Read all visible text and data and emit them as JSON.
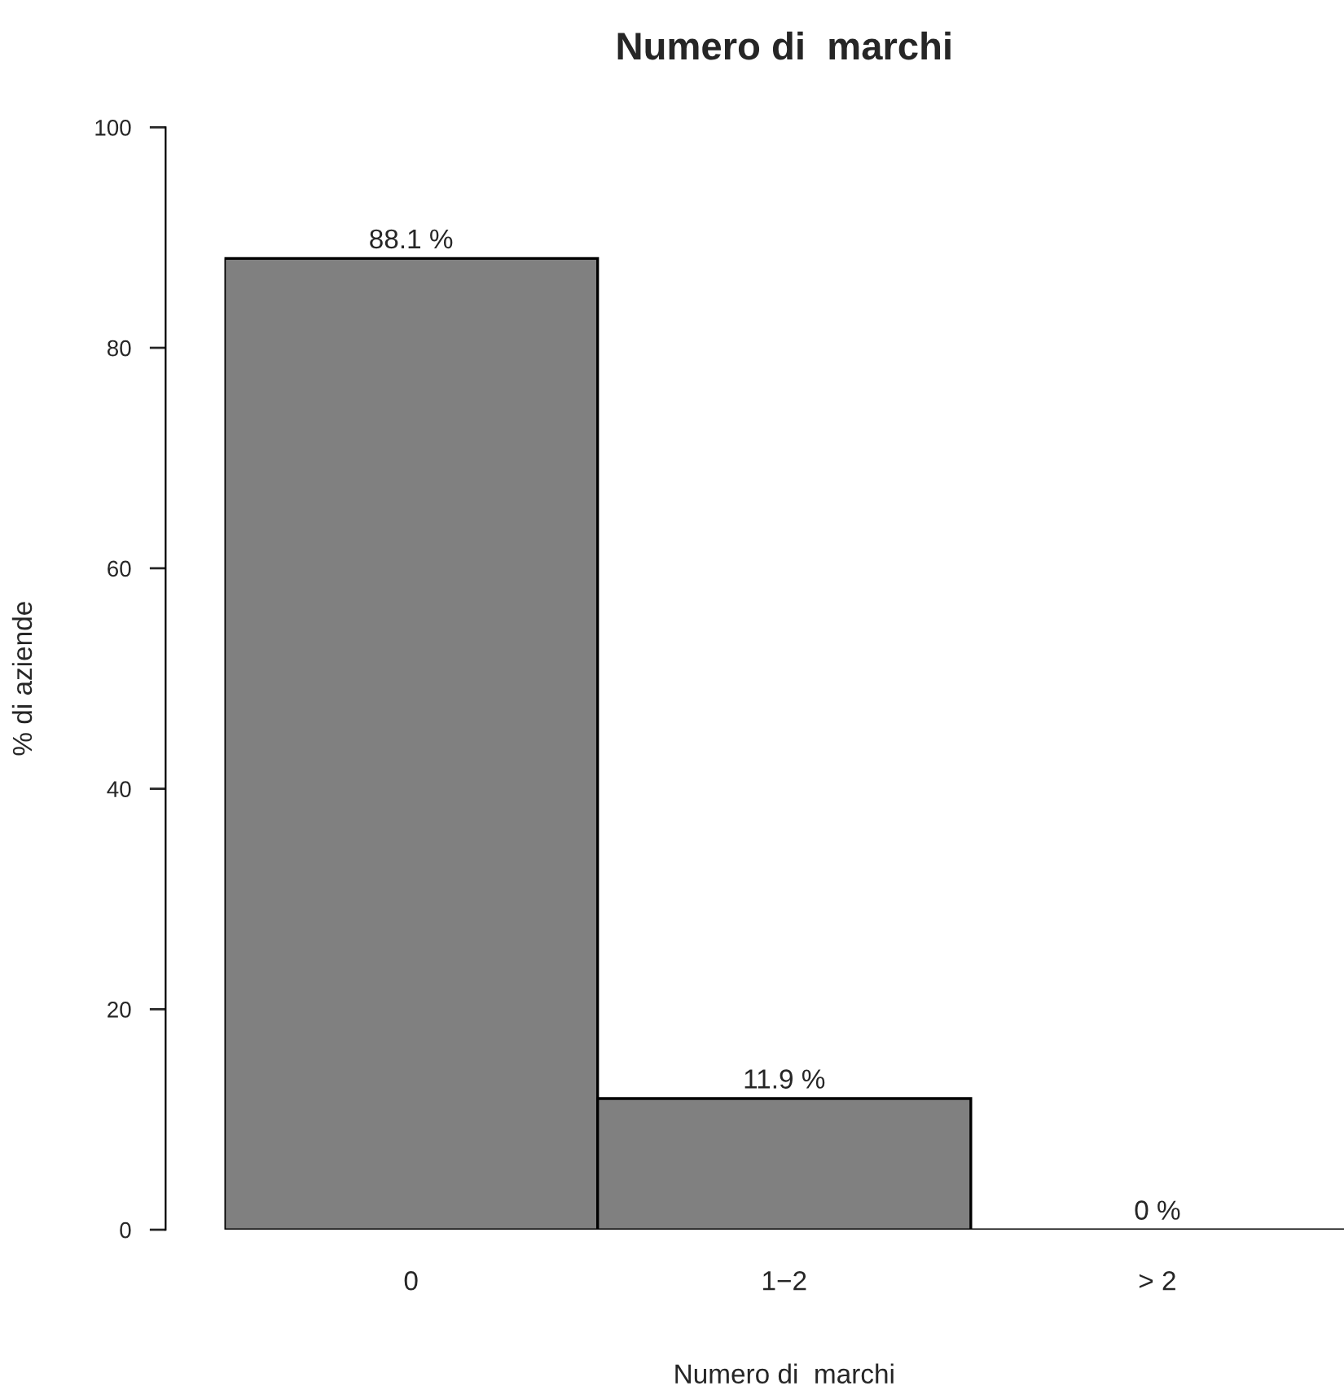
{
  "chart_data": {
    "type": "bar",
    "title": "Numero di  marchi",
    "xlabel": "Numero di  marchi",
    "ylabel": "% di aziende",
    "categories": [
      "0",
      "1−2",
      "> 2"
    ],
    "values": [
      88.1,
      11.9,
      0
    ],
    "value_labels": [
      "88.1 %",
      "11.9 %",
      "0 %"
    ],
    "color": "#808080",
    "ylim": [
      0,
      100
    ],
    "yticks": [
      0,
      20,
      40,
      60,
      80,
      100
    ],
    "grid": false
  }
}
